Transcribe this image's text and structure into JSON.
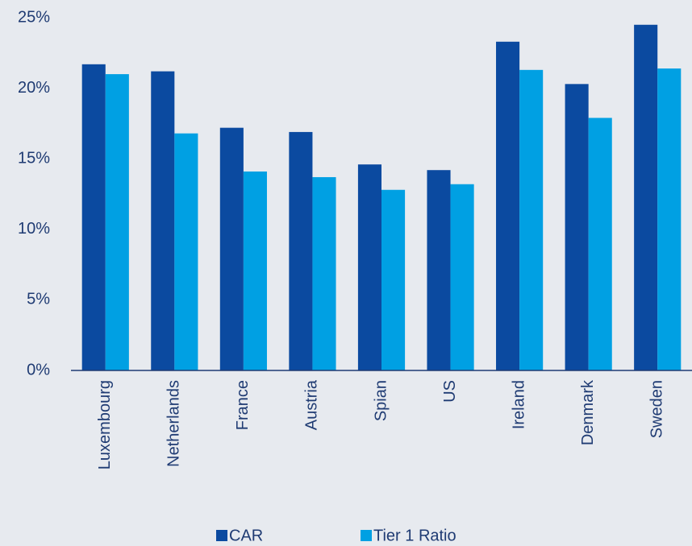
{
  "chart_data": {
    "type": "bar",
    "categories": [
      "Luxembourg",
      "Netherlands",
      "France",
      "Austria",
      "Spian",
      "US",
      "Ireland",
      "Denmark",
      "Sweden"
    ],
    "series": [
      {
        "name": "CAR",
        "color": "#0b4aa0",
        "values": [
          21.7,
          21.2,
          17.2,
          16.9,
          14.6,
          14.2,
          23.3,
          20.3,
          24.5
        ]
      },
      {
        "name": "Tier 1 Ratio",
        "color": "#00a0e3",
        "values": [
          21.0,
          16.8,
          14.1,
          13.7,
          12.8,
          13.2,
          21.3,
          17.9,
          21.4
        ]
      }
    ],
    "ylim": [
      0,
      25
    ],
    "yticks": [
      {
        "value": 0,
        "label": "0%"
      },
      {
        "value": 5,
        "label": "5%"
      },
      {
        "value": 10,
        "label": "10%"
      },
      {
        "value": 15,
        "label": "15%"
      },
      {
        "value": 20,
        "label": "20%"
      },
      {
        "value": 25,
        "label": "25%"
      }
    ],
    "grid": false,
    "legend": "bottom"
  }
}
